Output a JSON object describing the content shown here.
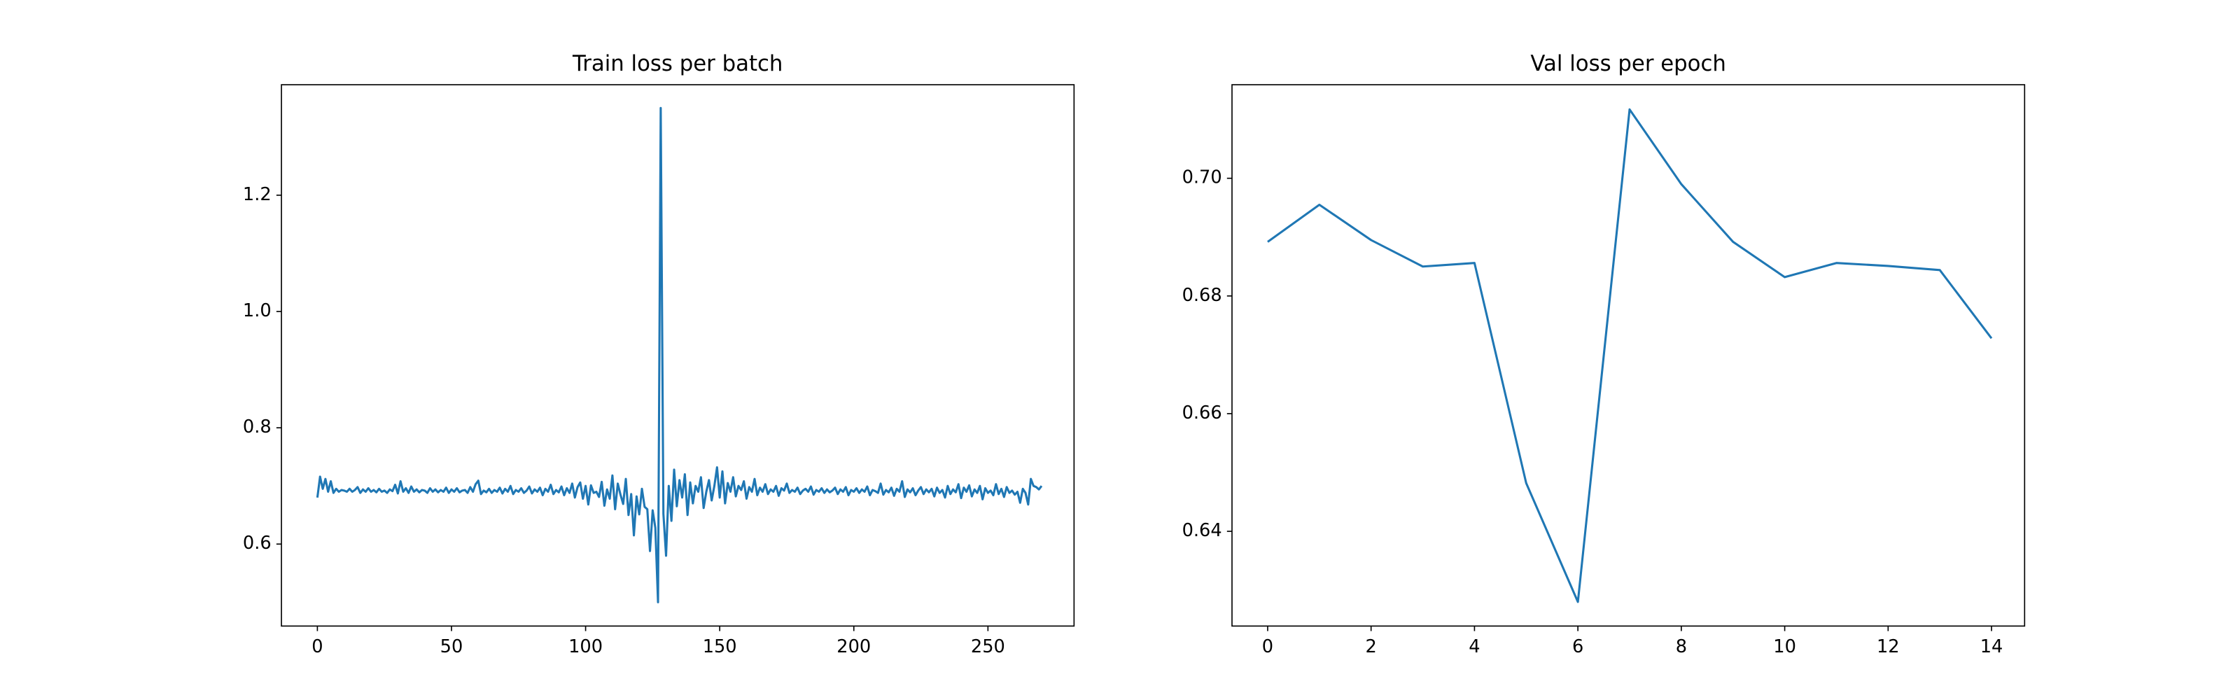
{
  "chart_data": [
    {
      "type": "line",
      "title": "Train loss per batch",
      "x": [
        0,
        1,
        2,
        3,
        4,
        5,
        6,
        7,
        8,
        9,
        10,
        11,
        12,
        13,
        14,
        15,
        16,
        17,
        18,
        19,
        20,
        21,
        22,
        23,
        24,
        25,
        26,
        27,
        28,
        29,
        30,
        31,
        32,
        33,
        34,
        35,
        36,
        37,
        38,
        39,
        40,
        41,
        42,
        43,
        44,
        45,
        46,
        47,
        48,
        49,
        50,
        51,
        52,
        53,
        54,
        55,
        56,
        57,
        58,
        59,
        60,
        61,
        62,
        63,
        64,
        65,
        66,
        67,
        68,
        69,
        70,
        71,
        72,
        73,
        74,
        75,
        76,
        77,
        78,
        79,
        80,
        81,
        82,
        83,
        84,
        85,
        86,
        87,
        88,
        89,
        90,
        91,
        92,
        93,
        94,
        95,
        96,
        97,
        98,
        99,
        100,
        101,
        102,
        103,
        104,
        105,
        106,
        107,
        108,
        109,
        110,
        111,
        112,
        113,
        114,
        115,
        116,
        117,
        118,
        119,
        120,
        121,
        122,
        123,
        124,
        125,
        126,
        127,
        128,
        129,
        130,
        131,
        132,
        133,
        134,
        135,
        136,
        137,
        138,
        139,
        140,
        141,
        142,
        143,
        144,
        145,
        146,
        147,
        148,
        149,
        150,
        151,
        152,
        153,
        154,
        155,
        156,
        157,
        158,
        159,
        160,
        161,
        162,
        163,
        164,
        165,
        166,
        167,
        168,
        169,
        170,
        171,
        172,
        173,
        174,
        175,
        176,
        177,
        178,
        179,
        180,
        181,
        182,
        183,
        184,
        185,
        186,
        187,
        188,
        189,
        190,
        191,
        192,
        193,
        194,
        195,
        196,
        197,
        198,
        199,
        200,
        201,
        202,
        203,
        204,
        205,
        206,
        207,
        208,
        209,
        210,
        211,
        212,
        213,
        214,
        215,
        216,
        217,
        218,
        219,
        220,
        221,
        222,
        223,
        224,
        225,
        226,
        227,
        228,
        229,
        230,
        231,
        232,
        233,
        234,
        235,
        236,
        237,
        238,
        239,
        240,
        241,
        242,
        243,
        244,
        245,
        246,
        247,
        248,
        249,
        250,
        251,
        252,
        253,
        254,
        255,
        256,
        257,
        258,
        259,
        260,
        261,
        262,
        263,
        264,
        265,
        266,
        267,
        268,
        269,
        270
      ],
      "values": [
        0.68,
        0.716,
        0.695,
        0.712,
        0.69,
        0.708,
        0.688,
        0.695,
        0.69,
        0.693,
        0.692,
        0.69,
        0.695,
        0.69,
        0.693,
        0.698,
        0.688,
        0.694,
        0.69,
        0.696,
        0.69,
        0.693,
        0.689,
        0.695,
        0.69,
        0.692,
        0.688,
        0.694,
        0.691,
        0.702,
        0.687,
        0.708,
        0.69,
        0.696,
        0.688,
        0.699,
        0.69,
        0.694,
        0.689,
        0.693,
        0.692,
        0.688,
        0.696,
        0.69,
        0.694,
        0.689,
        0.693,
        0.69,
        0.697,
        0.688,
        0.694,
        0.69,
        0.696,
        0.689,
        0.692,
        0.693,
        0.688,
        0.698,
        0.69,
        0.703,
        0.709,
        0.686,
        0.692,
        0.689,
        0.695,
        0.688,
        0.693,
        0.69,
        0.697,
        0.687,
        0.695,
        0.69,
        0.7,
        0.686,
        0.693,
        0.69,
        0.696,
        0.688,
        0.692,
        0.699,
        0.687,
        0.694,
        0.69,
        0.697,
        0.684,
        0.695,
        0.69,
        0.702,
        0.686,
        0.693,
        0.689,
        0.699,
        0.684,
        0.696,
        0.688,
        0.704,
        0.68,
        0.698,
        0.706,
        0.678,
        0.7,
        0.668,
        0.701,
        0.688,
        0.69,
        0.681,
        0.707,
        0.666,
        0.694,
        0.678,
        0.718,
        0.66,
        0.704,
        0.685,
        0.669,
        0.712,
        0.65,
        0.686,
        0.615,
        0.682,
        0.651,
        0.695,
        0.664,
        0.66,
        0.588,
        0.658,
        0.628,
        0.5,
        1.35,
        0.652,
        0.58,
        0.7,
        0.64,
        0.728,
        0.665,
        0.71,
        0.68,
        0.72,
        0.65,
        0.706,
        0.67,
        0.7,
        0.69,
        0.715,
        0.662,
        0.69,
        0.71,
        0.675,
        0.7,
        0.732,
        0.68,
        0.725,
        0.67,
        0.705,
        0.69,
        0.715,
        0.682,
        0.7,
        0.693,
        0.708,
        0.678,
        0.698,
        0.69,
        0.712,
        0.684,
        0.697,
        0.69,
        0.703,
        0.686,
        0.694,
        0.69,
        0.7,
        0.683,
        0.696,
        0.692,
        0.704,
        0.688,
        0.693,
        0.69,
        0.697,
        0.686,
        0.692,
        0.695,
        0.69,
        0.699,
        0.685,
        0.693,
        0.69,
        0.696,
        0.688,
        0.694,
        0.689,
        0.692,
        0.697,
        0.686,
        0.694,
        0.69,
        0.698,
        0.684,
        0.693,
        0.69,
        0.696,
        0.688,
        0.694,
        0.69,
        0.699,
        0.684,
        0.693,
        0.691,
        0.688,
        0.704,
        0.685,
        0.693,
        0.689,
        0.697,
        0.683,
        0.695,
        0.69,
        0.708,
        0.681,
        0.694,
        0.689,
        0.696,
        0.684,
        0.692,
        0.698,
        0.686,
        0.694,
        0.689,
        0.695,
        0.682,
        0.697,
        0.688,
        0.693,
        0.68,
        0.7,
        0.686,
        0.694,
        0.689,
        0.703,
        0.679,
        0.697,
        0.69,
        0.701,
        0.682,
        0.694,
        0.688,
        0.7,
        0.677,
        0.696,
        0.688,
        0.692,
        0.684,
        0.703,
        0.686,
        0.695,
        0.681,
        0.698,
        0.688,
        0.692,
        0.685,
        0.69,
        0.671,
        0.695,
        0.688,
        0.668,
        0.712,
        0.7,
        0.698,
        0.694,
        0.7
      ],
      "color": "#1f77b4",
      "xlim": [
        -13.4,
        282.1
      ],
      "xticks": [
        0,
        50,
        100,
        150,
        200,
        250
      ],
      "ylim": [
        0.459,
        1.39
      ],
      "yticks": [
        0.6,
        0.8,
        {
          "value": 1,
          "label": "1.0"
        },
        1.2
      ]
    },
    {
      "type": "line",
      "title": "Val loss per epoch",
      "x": [
        0,
        1,
        2,
        3,
        4,
        5,
        6,
        7,
        8,
        9,
        10,
        11,
        12,
        13,
        14
      ],
      "values": [
        0.6892,
        0.6955,
        0.6895,
        0.685,
        0.6856,
        0.6482,
        0.628,
        0.7117,
        0.699,
        0.6892,
        0.6832,
        0.6856,
        0.6851,
        0.6844,
        0.6728
      ],
      "color": "#1f77b4",
      "xlim": [
        -0.69,
        14.64
      ],
      "xticks": [
        0,
        2,
        4,
        6,
        8,
        10,
        12,
        14
      ],
      "ylim": [
        0.6239,
        0.7159
      ],
      "yticks": [
        0.64,
        0.66,
        0.68,
        {
          "value": 0.7,
          "label": "0.70"
        }
      ]
    }
  ]
}
